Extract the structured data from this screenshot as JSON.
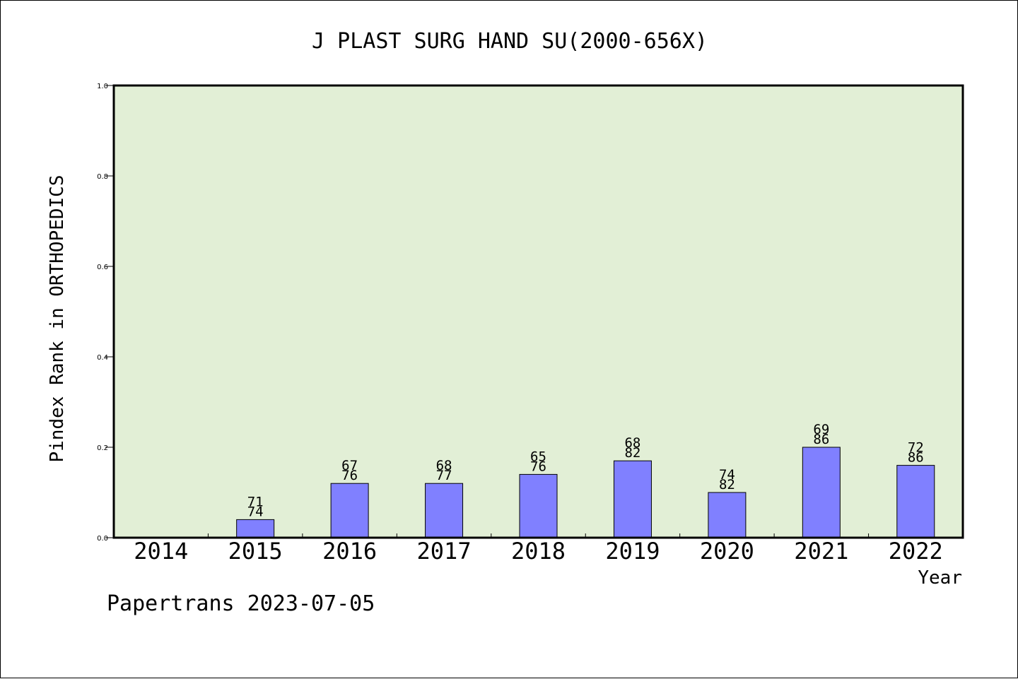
{
  "chart_data": {
    "type": "bar",
    "title": "J PLAST SURG HAND SU(2000-656X)",
    "ylabel": "Pindex Rank in ORTHOPEDICS",
    "xlabel": "Year",
    "footer": "Papertrans 2023-07-05",
    "categories": [
      "2014",
      "2015",
      "2016",
      "2017",
      "2018",
      "2019",
      "2020",
      "2021",
      "2022"
    ],
    "values": [
      0,
      0.04,
      0.12,
      0.12,
      0.14,
      0.17,
      0.1,
      0.2,
      0.16
    ],
    "labels_top": [
      "",
      "71",
      "67",
      "68",
      "65",
      "68",
      "74",
      "69",
      "72"
    ],
    "labels_bottom": [
      "",
      "74",
      "76",
      "77",
      "76",
      "82",
      "82",
      "86",
      "86"
    ],
    "ylim": [
      0,
      1.0
    ],
    "yticks": [
      "0.0",
      "0.2",
      "0.4",
      "0.6",
      "0.8",
      "1.0"
    ],
    "grid": false,
    "colors": {
      "plot_background": "#e2efd6",
      "bar_fill": "#8080ff",
      "bar_stroke": "#000000",
      "axis": "#000000"
    }
  }
}
